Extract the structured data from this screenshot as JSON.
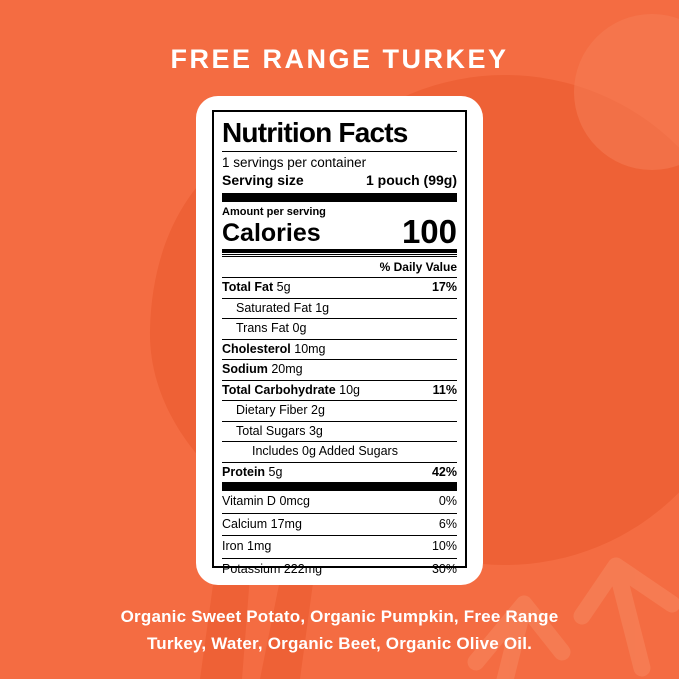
{
  "title": "FREE RANGE TURKEY",
  "ingredients": "Organic Sweet Potato, Organic Pumpkin, Free Range Turkey, Water, Organic Beet, Organic Olive Oil.",
  "colors": {
    "background": "#F46C42",
    "silhouette_dark": "#EE6136",
    "silhouette_light": "#F67E55",
    "card": "#FFFFFF",
    "label_text": "#000000",
    "title_text": "#FFFFFF"
  },
  "icons": {
    "background_art": "turkey-silhouette"
  },
  "nutrition": {
    "heading": "Nutrition Facts",
    "servings_per_container": "1 servings per container",
    "serving_size": {
      "label": "Serving size",
      "value": "1 pouch (99g)"
    },
    "amount_per_serving": "Amount per serving",
    "calories": {
      "label": "Calories",
      "value": "100"
    },
    "daily_value_header": "% Daily Value",
    "rows": [
      {
        "name": "Total Fat",
        "amount": "5g",
        "pct": "17%",
        "bold": true,
        "indent": 0
      },
      {
        "name": "Saturated Fat",
        "amount": "1g",
        "pct": "",
        "bold": false,
        "indent": 1
      },
      {
        "name": "Trans Fat",
        "amount": "0g",
        "pct": "",
        "bold": false,
        "indent": 1
      },
      {
        "name": "Cholesterol",
        "amount": "10mg",
        "pct": "",
        "bold": true,
        "indent": 0
      },
      {
        "name": "Sodium",
        "amount": "20mg",
        "pct": "",
        "bold": true,
        "indent": 0
      },
      {
        "name": "Total Carbohydrate",
        "amount": "10g",
        "pct": "11%",
        "bold": true,
        "indent": 0
      },
      {
        "name": "Dietary Fiber",
        "amount": "2g",
        "pct": "",
        "bold": false,
        "indent": 1
      },
      {
        "name": "Total Sugars",
        "amount": "3g",
        "pct": "",
        "bold": false,
        "indent": 1
      },
      {
        "name": "Includes 0g Added Sugars",
        "amount": "",
        "pct": "",
        "bold": false,
        "indent": 2
      },
      {
        "name": "Protein",
        "amount": "5g",
        "pct": "42%",
        "bold": true,
        "indent": 0
      }
    ],
    "vitamin_rows": [
      {
        "name": "Vitamin D",
        "amount": "0mcg",
        "pct": "0%"
      },
      {
        "name": "Calcium",
        "amount": "17mg",
        "pct": "6%"
      },
      {
        "name": "Iron",
        "amount": "1mg",
        "pct": "10%"
      },
      {
        "name": "Potassium",
        "amount": "222mg",
        "pct": "30%"
      }
    ]
  }
}
